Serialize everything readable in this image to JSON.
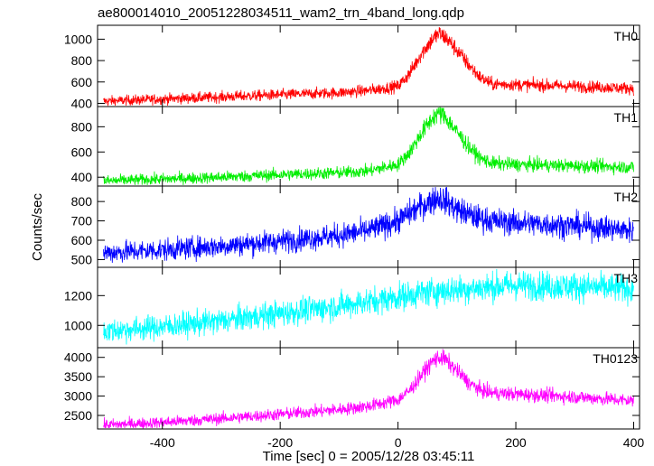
{
  "figure": {
    "title": "ae800014010_20051228034511_wam2_trn_4band_long.qdp",
    "xlabel": "Time [sec] 0 = 2005/12/28 03:45:11",
    "ylabel": "Counts/sec"
  },
  "chart_data": [
    {
      "type": "line",
      "panel_label": "TH0",
      "color": "#ff0000",
      "xlim": [
        -510,
        410
      ],
      "ylim": [
        370,
        1130
      ],
      "yticks": [
        400,
        600,
        800,
        1000
      ],
      "xticks": [
        -400,
        -200,
        0,
        200,
        400
      ],
      "grid": false,
      "series": [
        {
          "x": [
            -500,
            -400,
            -300,
            -200,
            -100,
            -50,
            0,
            20,
            40,
            60,
            70,
            80,
            100,
            120,
            140,
            160,
            200,
            300,
            400
          ],
          "y": [
            420,
            440,
            460,
            480,
            500,
            520,
            560,
            680,
            870,
            1010,
            1050,
            1020,
            900,
            760,
            640,
            580,
            575,
            560,
            540
          ]
        }
      ]
    },
    {
      "type": "line",
      "panel_label": "TH1",
      "color": "#00ee00",
      "xlim": [
        -510,
        410
      ],
      "ylim": [
        330,
        960
      ],
      "yticks": [
        400,
        600,
        800
      ],
      "xticks": [
        -400,
        -200,
        0,
        200,
        400
      ],
      "grid": false,
      "series": [
        {
          "x": [
            -500,
            -400,
            -300,
            -200,
            -100,
            -50,
            0,
            20,
            40,
            60,
            70,
            80,
            100,
            120,
            140,
            160,
            200,
            300,
            400
          ],
          "y": [
            370,
            385,
            400,
            420,
            435,
            450,
            500,
            600,
            750,
            880,
            910,
            880,
            760,
            640,
            550,
            510,
            500,
            490,
            480
          ]
        }
      ]
    },
    {
      "type": "line",
      "panel_label": "TH2",
      "color": "#0000ff",
      "xlim": [
        -510,
        410
      ],
      "ylim": [
        460,
        880
      ],
      "yticks": [
        500,
        600,
        700,
        800
      ],
      "xticks": [
        -400,
        -200,
        0,
        200,
        400
      ],
      "grid": false,
      "series": [
        {
          "x": [
            -500,
            -400,
            -300,
            -200,
            -100,
            -50,
            0,
            30,
            60,
            70,
            80,
            100,
            130,
            160,
            200,
            300,
            400
          ],
          "y": [
            535,
            550,
            570,
            595,
            625,
            650,
            700,
            760,
            810,
            820,
            805,
            760,
            720,
            700,
            690,
            675,
            650
          ]
        }
      ]
    },
    {
      "type": "line",
      "panel_label": "TH3",
      "color": "#00ffff",
      "xlim": [
        -510,
        410
      ],
      "ylim": [
        850,
        1390
      ],
      "yticks": [
        1000,
        1200
      ],
      "xticks": [
        -400,
        -200,
        0,
        200,
        400
      ],
      "grid": false,
      "series": [
        {
          "x": [
            -500,
            -400,
            -300,
            -200,
            -100,
            0,
            50,
            100,
            200,
            300,
            400
          ],
          "y": [
            960,
            990,
            1030,
            1080,
            1130,
            1190,
            1225,
            1240,
            1270,
            1260,
            1245
          ]
        }
      ]
    },
    {
      "type": "line",
      "panel_label": "TH0123",
      "color": "#ff00ff",
      "xlim": [
        -510,
        410
      ],
      "ylim": [
        2150,
        4250
      ],
      "yticks": [
        2500,
        3000,
        3500,
        4000
      ],
      "xticks": [
        -400,
        -200,
        0,
        200,
        400
      ],
      "grid": false,
      "series": [
        {
          "x": [
            -500,
            -400,
            -300,
            -200,
            -100,
            -50,
            0,
            20,
            40,
            60,
            70,
            80,
            100,
            120,
            140,
            160,
            200,
            300,
            400
          ],
          "y": [
            2250,
            2320,
            2420,
            2530,
            2650,
            2740,
            2900,
            3150,
            3550,
            3920,
            4000,
            3950,
            3650,
            3350,
            3150,
            3080,
            3050,
            2980,
            2880
          ]
        }
      ]
    }
  ]
}
